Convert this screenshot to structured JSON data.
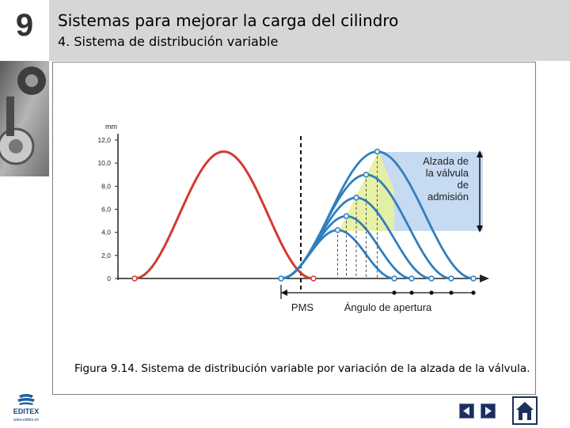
{
  "header": {
    "chapter_number": "9",
    "title": "Sistemas para mejorar la carga del cilindro",
    "subtitle": "4. Sistema de distribución variable"
  },
  "figure": {
    "caption": "Figura 9.14. Sistema de distribución variable por variación de la alzada de la válvula."
  },
  "chart_data": {
    "type": "line",
    "ylabel": "mm",
    "ylim": [
      0,
      12
    ],
    "yticks": [
      "0",
      "2,0",
      "4,0",
      "6,0",
      "8,0",
      "10,0",
      "12,0"
    ],
    "axis_labels": [
      "PMS",
      "Ángulo de apertura"
    ],
    "annotation": [
      "Alzada de",
      "la válvula",
      "de",
      "admisión"
    ],
    "grid": false,
    "series": [
      {
        "color": "#d23b2e",
        "peak_lift": 11.0
      },
      {
        "color": "#2f7fbf",
        "peak_lift": 4.2
      },
      {
        "color": "#2f7fbf",
        "peak_lift": 5.4
      },
      {
        "color": "#2f7fbf",
        "peak_lift": 7.0
      },
      {
        "color": "#2f7fbf",
        "peak_lift": 9.0
      },
      {
        "color": "#2f7fbf",
        "peak_lift": 11.0
      }
    ]
  },
  "footer": {
    "logo_text": "EDITEX",
    "logo_subtext": "www.editex.es",
    "prev_icon": "triangle-left",
    "next_icon": "triangle-right",
    "home_icon": "house"
  }
}
